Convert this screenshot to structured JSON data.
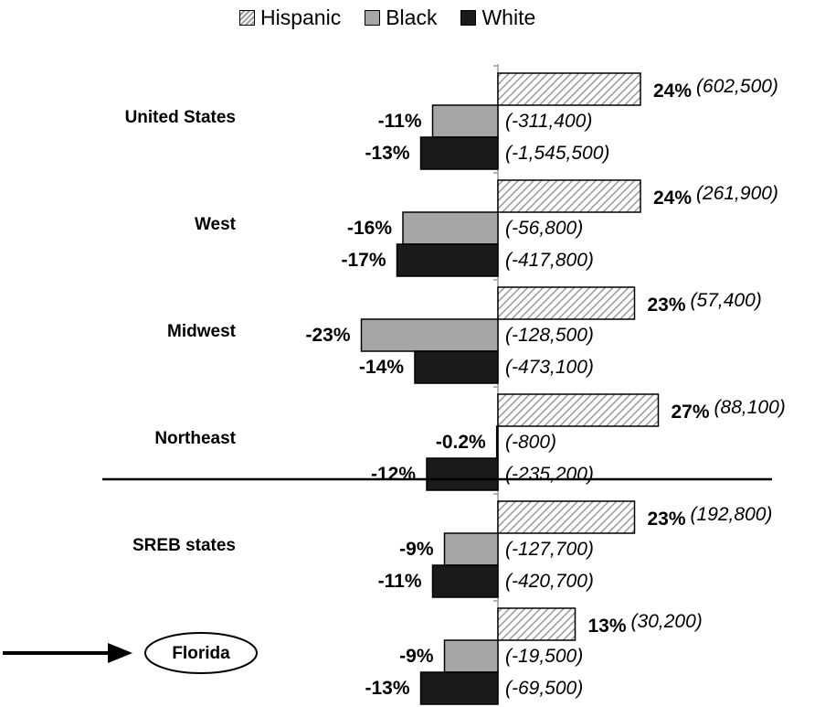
{
  "legend": [
    {
      "label": "Hispanic",
      "key": "hispanic"
    },
    {
      "label": "Black",
      "key": "black"
    },
    {
      "label": "White",
      "key": "white"
    }
  ],
  "colors": {
    "hispanic_stripe": "#9a9a9a",
    "black": "#a6a6a6",
    "white": "#1a1a1a",
    "axis": "#9a9a9a"
  },
  "chart_data": {
    "type": "bar",
    "orientation": "horizontal",
    "categories": [
      "United States",
      "West",
      "Midwest",
      "Northeast",
      "SREB states",
      "Florida"
    ],
    "highlighted_category": "Florida",
    "series": [
      {
        "name": "Hispanic",
        "values": [
          24,
          24,
          23,
          27,
          23,
          13
        ],
        "pct_labels": [
          "24%",
          "24%",
          "23%",
          "27%",
          "23%",
          "13%"
        ],
        "counts": [
          "(602,500)",
          "(261,900)",
          "(57,400)",
          "(88,100)",
          "(192,800)",
          "(30,200)"
        ]
      },
      {
        "name": "Black",
        "values": [
          -11,
          -16,
          -23,
          -0.2,
          -9,
          -9
        ],
        "pct_labels": [
          "-11%",
          "-16%",
          "-23%",
          "-0.2%",
          "-9%",
          "-9%"
        ],
        "counts": [
          "(-311,400)",
          "(-56,800)",
          "(-128,500)",
          "(-800)",
          "(-127,700)",
          "(-19,500)"
        ]
      },
      {
        "name": "White",
        "values": [
          -13,
          -17,
          -14,
          -12,
          -11,
          -13
        ],
        "pct_labels": [
          "-13%",
          "-17%",
          "-14%",
          "-12%",
          "-11%",
          "-13%"
        ],
        "counts": [
          "(-1,545,500)",
          "(-417,800)",
          "(-473,100)",
          "(-235,200)",
          "(-420,700)",
          "(-69,500)"
        ]
      }
    ],
    "xlim": [
      -23,
      27
    ],
    "grid": false,
    "legend_position": "top"
  }
}
